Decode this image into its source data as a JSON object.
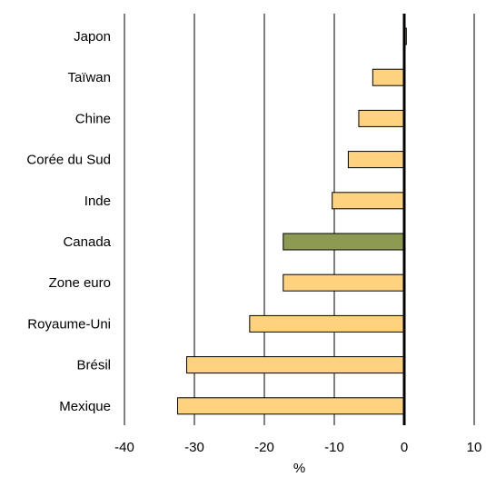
{
  "chart_data": {
    "type": "bar",
    "orientation": "horizontal",
    "categories": [
      "Japon",
      "Taïwan",
      "Chine",
      "Corée du Sud",
      "Inde",
      "Canada",
      "Zone euro",
      "Royaume-Uni",
      "Brésil",
      "Mexique"
    ],
    "values": [
      0.3,
      -4.5,
      -6.5,
      -8.0,
      -10.3,
      -17.3,
      -17.3,
      -22.1,
      -31.1,
      -32.4
    ],
    "highlight_category": "Canada",
    "xlabel": "%",
    "xlim": [
      -40,
      10
    ],
    "x_ticks": [
      "-40",
      "-30",
      "-20",
      "-10",
      "0",
      "10"
    ],
    "grid": "vertical",
    "colors": {
      "bar": "#FFD27F",
      "highlight": "#8C9A52",
      "bar_stroke": "#000000",
      "grid": "#000000",
      "zero_line": "#000000"
    }
  }
}
